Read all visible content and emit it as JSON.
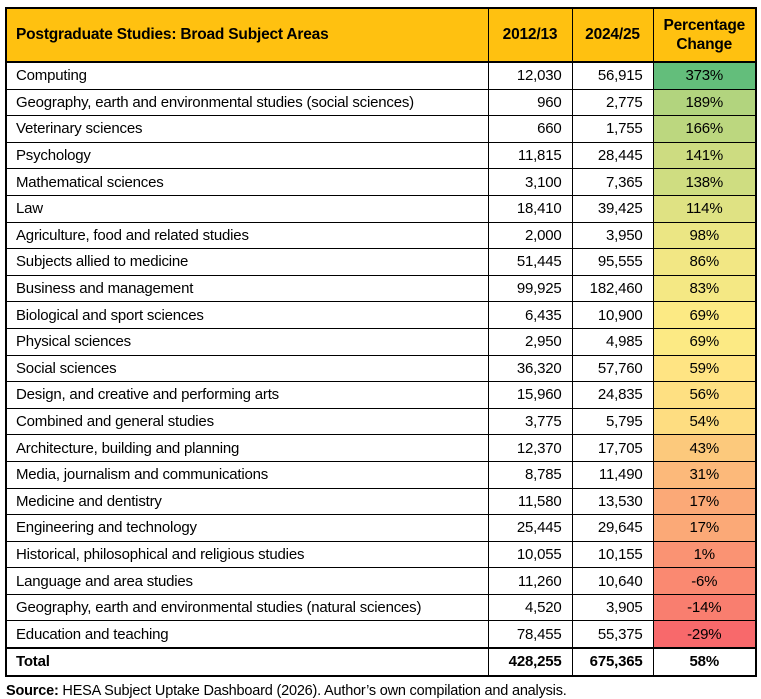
{
  "colors": {
    "header_bg": "#FFC110",
    "border": "#000000",
    "scale_max_green": "#63BE7B",
    "scale_mid_yellow": "#FFEB84",
    "scale_min_red": "#F8696B"
  },
  "table": {
    "header": {
      "col1": "Postgraduate Studies: Broad Subject Areas",
      "col2": "2012/13",
      "col3": "2024/25",
      "col4": "Percentage Change"
    },
    "rows": [
      {
        "subject": "Computing",
        "y2012": "12,030",
        "y2024": "56,915",
        "change": "373%",
        "change_color": "#63BE7B"
      },
      {
        "subject": "Geography, earth and environmental studies (social sciences)",
        "y2012": "960",
        "y2024": "2,775",
        "change": "189%",
        "change_color": "#B2D47E"
      },
      {
        "subject": "Veterinary sciences",
        "y2012": "660",
        "y2024": "1,755",
        "change": "166%",
        "change_color": "#BCD77F"
      },
      {
        "subject": "Psychology",
        "y2012": "11,815",
        "y2024": "28,445",
        "change": "141%",
        "change_color": "#CDDC81"
      },
      {
        "subject": "Mathematical sciences",
        "y2012": "3,100",
        "y2024": "7,365",
        "change": "138%",
        "change_color": "#CFDD81"
      },
      {
        "subject": "Law",
        "y2012": "18,410",
        "y2024": "39,425",
        "change": "114%",
        "change_color": "#DFE283"
      },
      {
        "subject": "Agriculture, food and related studies",
        "y2012": "2,000",
        "y2024": "3,950",
        "change": "98%",
        "change_color": "#EBE684"
      },
      {
        "subject": "Subjects allied to medicine",
        "y2012": "51,445",
        "y2024": "95,555",
        "change": "86%",
        "change_color": "#F2E784"
      },
      {
        "subject": "Business and management",
        "y2012": "99,925",
        "y2024": "182,460",
        "change": "83%",
        "change_color": "#F4E884"
      },
      {
        "subject": "Biological and sport sciences",
        "y2012": "6,435",
        "y2024": "10,900",
        "change": "69%",
        "change_color": "#FCEA84"
      },
      {
        "subject": "Physical sciences",
        "y2012": "2,950",
        "y2024": "4,985",
        "change": "69%",
        "change_color": "#FCEA84"
      },
      {
        "subject": "Social sciences",
        "y2012": "36,320",
        "y2024": "57,760",
        "change": "59%",
        "change_color": "#FFE483"
      },
      {
        "subject": "Design, and creative and performing arts",
        "y2012": "15,960",
        "y2024": "24,835",
        "change": "56%",
        "change_color": "#FEE082"
      },
      {
        "subject": "Combined and general studies",
        "y2012": "3,775",
        "y2024": "5,795",
        "change": "54%",
        "change_color": "#FEDD81"
      },
      {
        "subject": "Architecture, building and planning",
        "y2012": "12,370",
        "y2024": "17,705",
        "change": "43%",
        "change_color": "#FCC97C"
      },
      {
        "subject": "Media, journalism and communications",
        "y2012": "8,785",
        "y2024": "11,490",
        "change": "31%",
        "change_color": "#FCB97A"
      },
      {
        "subject": "Medicine and dentistry",
        "y2012": "11,580",
        "y2024": "13,530",
        "change": "17%",
        "change_color": "#FBA977"
      },
      {
        "subject": "Engineering and technology",
        "y2012": "25,445",
        "y2024": "29,645",
        "change": "17%",
        "change_color": "#FBA977"
      },
      {
        "subject": "Historical, philosophical and religious studies",
        "y2012": "10,055",
        "y2024": "10,155",
        "change": "1%",
        "change_color": "#FA9373"
      },
      {
        "subject": "Language and area studies",
        "y2012": "11,260",
        "y2024": "10,640",
        "change": "-6%",
        "change_color": "#FA8971"
      },
      {
        "subject": "Geography, earth and environmental studies (natural sciences)",
        "y2012": "4,520",
        "y2024": "3,905",
        "change": "-14%",
        "change_color": "#F97E6F"
      },
      {
        "subject": "Education and teaching",
        "y2012": "78,455",
        "y2024": "55,375",
        "change": "-29%",
        "change_color": "#F8696B"
      }
    ],
    "total": {
      "label": "Total",
      "y2012": "428,255",
      "y2024": "675,365",
      "change": "58%"
    }
  },
  "source": {
    "prefix": "Source:",
    "text": " HESA Subject Uptake Dashboard (2026). Author’s own compilation and analysis."
  },
  "chart_data": {
    "type": "table",
    "title": "Postgraduate Studies: Broad Subject Areas",
    "columns": [
      "Postgraduate Studies: Broad Subject Areas",
      "2012/13",
      "2024/25",
      "Percentage Change"
    ],
    "rows": [
      [
        "Computing",
        12030,
        56915,
        373
      ],
      [
        "Geography, earth and environmental studies (social sciences)",
        960,
        2775,
        189
      ],
      [
        "Veterinary sciences",
        660,
        1755,
        166
      ],
      [
        "Psychology",
        11815,
        28445,
        141
      ],
      [
        "Mathematical sciences",
        3100,
        7365,
        138
      ],
      [
        "Law",
        18410,
        39425,
        114
      ],
      [
        "Agriculture, food and related studies",
        2000,
        3950,
        98
      ],
      [
        "Subjects allied to medicine",
        51445,
        95555,
        86
      ],
      [
        "Business and management",
        99925,
        182460,
        83
      ],
      [
        "Biological and sport sciences",
        6435,
        10900,
        69
      ],
      [
        "Physical sciences",
        2950,
        4985,
        69
      ],
      [
        "Social sciences",
        36320,
        57760,
        59
      ],
      [
        "Design, and creative and performing arts",
        15960,
        24835,
        56
      ],
      [
        "Combined and general studies",
        3775,
        5795,
        54
      ],
      [
        "Architecture, building and planning",
        12370,
        17705,
        43
      ],
      [
        "Media, journalism and communications",
        8785,
        11490,
        31
      ],
      [
        "Medicine and dentistry",
        11580,
        13530,
        17
      ],
      [
        "Engineering and technology",
        25445,
        29645,
        17
      ],
      [
        "Historical, philosophical and religious studies",
        10055,
        10155,
        1
      ],
      [
        "Language and area studies",
        11260,
        10640,
        -6
      ],
      [
        "Geography, earth and environmental studies (natural sciences)",
        4520,
        3905,
        -14
      ],
      [
        "Education and teaching",
        78455,
        55375,
        -29
      ]
    ],
    "total_row": [
      "Total",
      428255,
      675365,
      58
    ],
    "percentage_change_units": "%",
    "layout": {
      "color_scale_column": "Percentage Change",
      "color_scale": "green-yellow-red (high to low)",
      "grid": true
    },
    "source": "Source: HESA Subject Uptake Dashboard (2026). Author’s own compilation and analysis."
  }
}
